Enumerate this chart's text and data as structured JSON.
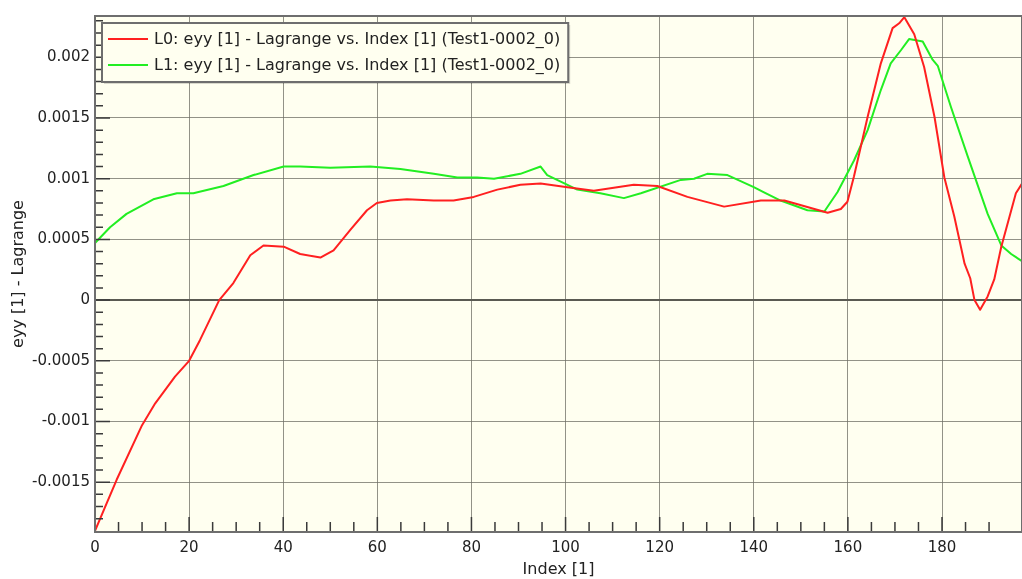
{
  "chart_data": {
    "type": "line",
    "xlabel": "Index [1]",
    "ylabel": "eyy [1] - Lagrange",
    "xlim": [
      0,
      197
    ],
    "ylim": [
      -0.00191,
      0.00234
    ],
    "xticks": [
      0,
      {
        "value": 5,
        "label": null
      },
      {
        "value": 10,
        "label": null
      },
      {
        "value": 15,
        "label": null
      },
      20,
      {
        "value": 25,
        "label": null
      },
      {
        "value": 30,
        "label": null
      },
      {
        "value": 35,
        "label": null
      },
      40,
      {
        "value": 45,
        "label": null
      },
      {
        "value": 50,
        "label": null
      },
      {
        "value": 55,
        "label": null
      },
      60,
      {
        "value": 65,
        "label": null
      },
      {
        "value": 70,
        "label": null
      },
      {
        "value": 75,
        "label": null
      },
      80,
      {
        "value": 85,
        "label": null
      },
      {
        "value": 90,
        "label": null
      },
      {
        "value": 95,
        "label": null
      },
      100,
      {
        "value": 105,
        "label": null
      },
      {
        "value": 110,
        "label": null
      },
      {
        "value": 115,
        "label": null
      },
      120,
      {
        "value": 125,
        "label": null
      },
      {
        "value": 130,
        "label": null
      },
      {
        "value": 135,
        "label": null
      },
      140,
      {
        "value": 145,
        "label": null
      },
      {
        "value": 150,
        "label": null
      },
      {
        "value": 155,
        "label": null
      },
      160,
      {
        "value": 165,
        "label": null
      },
      {
        "value": 170,
        "label": null
      },
      {
        "value": 175,
        "label": null
      },
      180,
      {
        "value": 185,
        "label": null
      },
      {
        "value": 190,
        "label": null
      }
    ],
    "yticks": [
      {
        "value": -0.0018,
        "label": null
      },
      {
        "value": -0.0017,
        "label": null
      },
      {
        "value": -0.0016,
        "label": null
      },
      -0.0015,
      {
        "value": -0.0014,
        "label": null
      },
      {
        "value": -0.0013,
        "label": null
      },
      {
        "value": -0.0012,
        "label": null
      },
      {
        "value": -0.0011,
        "label": null
      },
      -0.001,
      {
        "value": -0.0009,
        "label": null
      },
      {
        "value": -0.0008,
        "label": null
      },
      {
        "value": -0.0007,
        "label": null
      },
      {
        "value": -0.0006,
        "label": null
      },
      -0.0005,
      {
        "value": -0.0004,
        "label": null
      },
      {
        "value": -0.0003,
        "label": null
      },
      {
        "value": -0.0002,
        "label": null
      },
      {
        "value": -0.0001,
        "label": null
      },
      0,
      {
        "value": 0.0001,
        "label": null
      },
      {
        "value": 0.0002,
        "label": null
      },
      {
        "value": 0.0003,
        "label": null
      },
      {
        "value": 0.0004,
        "label": null
      },
      0.0005,
      {
        "value": 0.0006,
        "label": null
      },
      {
        "value": 0.0007,
        "label": null
      },
      {
        "value": 0.0008,
        "label": null
      },
      {
        "value": 0.0009,
        "label": null
      },
      0.001,
      {
        "value": 0.0011,
        "label": null
      },
      {
        "value": 0.0012,
        "label": null
      },
      {
        "value": 0.0013,
        "label": null
      },
      {
        "value": 0.0014,
        "label": null
      },
      0.0015,
      {
        "value": 0.0016,
        "label": null
      },
      {
        "value": 0.0017,
        "label": null
      },
      {
        "value": 0.0018,
        "label": null
      },
      {
        "value": 0.0019,
        "label": null
      },
      0.002,
      {
        "value": 0.0021,
        "label": null
      },
      {
        "value": 0.0022,
        "label": null
      },
      {
        "value": 0.0023,
        "label": null
      }
    ],
    "grid": true,
    "legend": "top left",
    "marker": "none",
    "line_style": "solid",
    "ref_lines": [
      {
        "axis": "y",
        "value": 0,
        "color": "#5a5a52"
      }
    ],
    "series": [
      {
        "name": "L0: eyy [1] - Lagrange vs. Index [1] (Test1-0002_0)",
        "color": "#ff2020",
        "x": [
          0,
          4.6,
          10,
          12.8,
          17,
          20,
          22.3,
          26.4,
          29.4,
          33,
          35.8,
          40.1,
          43.6,
          47.9,
          50.7,
          54.3,
          57.8,
          59.9,
          62.8,
          66.3,
          72,
          76.2,
          80.5,
          85.5,
          90.4,
          94.7,
          100.4,
          106,
          114.5,
          119.5,
          125.9,
          133.7,
          141.5,
          146.5,
          155.7,
          158.5,
          159.9,
          161.3,
          164.2,
          167,
          169.5,
          170.9,
          172,
          174.1,
          176.2,
          178.4,
          180.5,
          182.6,
          184.8,
          186,
          186.9,
          188.1,
          189.7,
          191.1,
          192.6,
          195.7,
          197
        ],
        "values": [
          -0.0019,
          -0.00148,
          -0.00103,
          -0.00085,
          -0.00063,
          -0.0005,
          -0.00033,
          0,
          0.00014,
          0.00037,
          0.00045,
          0.00044,
          0.00038,
          0.00035,
          0.00041,
          0.00058,
          0.00074,
          0.0008,
          0.00082,
          0.00083,
          0.00082,
          0.00082,
          0.00085,
          0.00091,
          0.00095,
          0.00096,
          0.00093,
          0.0009,
          0.00095,
          0.00094,
          0.00085,
          0.00077,
          0.00082,
          0.00082,
          0.00072,
          0.00075,
          0.00081,
          0.00102,
          0.00151,
          0.00195,
          0.00224,
          0.00228,
          0.00233,
          0.00219,
          0.00192,
          0.00151,
          0.00101,
          0.00069,
          0.0003,
          0.00018,
          0,
          -8e-05,
          3e-05,
          0.00017,
          0.00044,
          0.00088,
          0.00096
        ]
      },
      {
        "name": "L1: eyy [1] - Lagrange vs. Index [1] (Test1-0002_0)",
        "color": "#22ee22",
        "x": [
          0,
          3.2,
          6.7,
          12.4,
          17.4,
          20.9,
          27.3,
          33.7,
          40.1,
          43.6,
          50,
          58.5,
          64.9,
          72,
          77,
          81.2,
          84.8,
          90.4,
          94.7,
          96.1,
          102.5,
          107.4,
          112.4,
          116,
          124.5,
          127.3,
          130.1,
          134.4,
          140,
          145.7,
          151.4,
          155,
          157.8,
          161.3,
          164.2,
          167,
          169.1,
          171.3,
          173,
          175.9,
          178,
          179.1,
          181.9,
          185.5,
          189.7,
          192.6,
          194.7,
          197
        ],
        "values": [
          0.00047,
          0.0006,
          0.00071,
          0.00083,
          0.00088,
          0.00088,
          0.00094,
          0.00103,
          0.0011,
          0.0011,
          0.00109,
          0.0011,
          0.00108,
          0.00104,
          0.00101,
          0.00101,
          0.001,
          0.00104,
          0.0011,
          0.00103,
          0.00091,
          0.00088,
          0.00084,
          0.00088,
          0.00099,
          0.001,
          0.00104,
          0.00103,
          0.00093,
          0.00082,
          0.00074,
          0.00073,
          0.00089,
          0.00115,
          0.0014,
          0.00173,
          0.00195,
          0.00206,
          0.00215,
          0.00213,
          0.00198,
          0.00193,
          0.00159,
          0.00118,
          0.00071,
          0.00045,
          0.00038,
          0.00032
        ]
      }
    ]
  }
}
